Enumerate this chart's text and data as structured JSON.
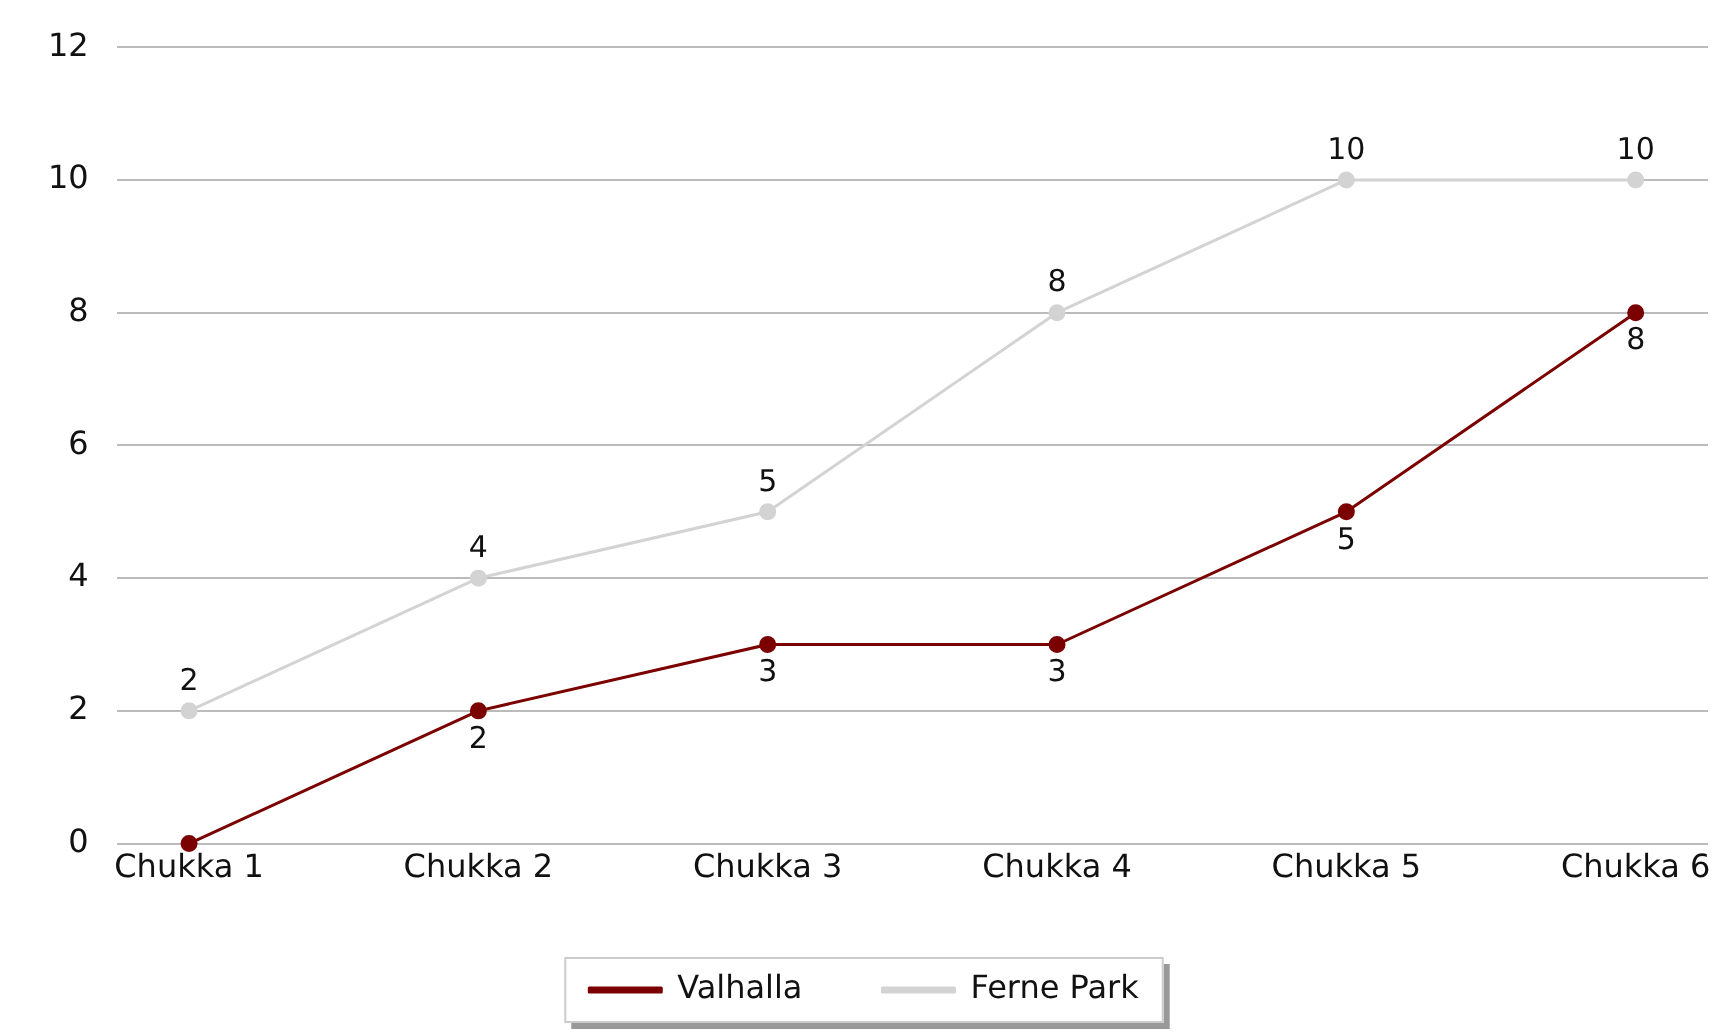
{
  "chart_data": {
    "type": "line",
    "categories": [
      "Chukka 1",
      "Chukka 2",
      "Chukka 3",
      "Chukka 4",
      "Chukka 5",
      "Chukka 6"
    ],
    "series": [
      {
        "name": "Valhalla",
        "color": "#7b0000",
        "values": [
          0,
          2,
          3,
          3,
          5,
          8
        ],
        "value_labels": [
          null,
          "2",
          "3",
          "3",
          "5",
          "8"
        ]
      },
      {
        "name": "Ferne Park",
        "color": "#d3d3d3",
        "values": [
          2,
          4,
          5,
          8,
          10,
          10
        ],
        "value_labels": [
          "2",
          "4",
          "5",
          "8",
          "10",
          "10"
        ]
      }
    ],
    "ylim": [
      0,
      12
    ],
    "yticks": [
      0,
      2,
      4,
      6,
      8,
      10,
      12
    ],
    "grid": "y",
    "legend": "bottom",
    "marker": "circle",
    "line_style": "solid"
  }
}
